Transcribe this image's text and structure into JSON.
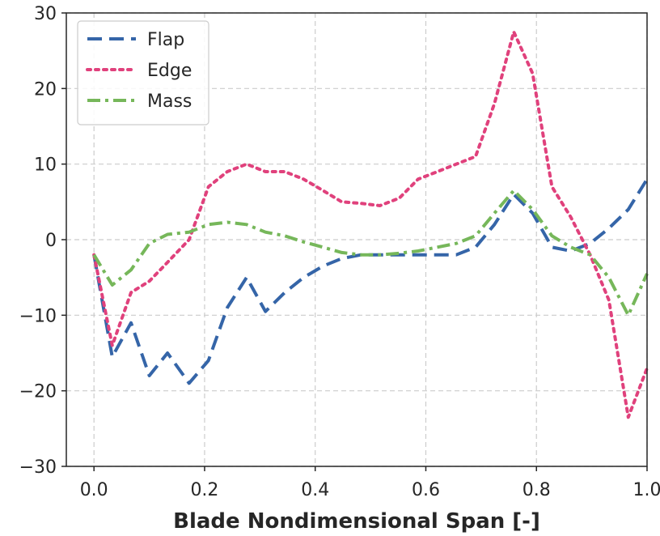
{
  "chart_data": {
    "type": "line",
    "xlabel": "Blade Nondimensional Span [-]",
    "ylabel": "",
    "xlim": [
      -0.05,
      1.0
    ],
    "ylim": [
      -30,
      30
    ],
    "xticks": [
      0.0,
      0.2,
      0.4,
      0.6,
      0.8,
      1.0
    ],
    "xtick_labels": [
      "0.0",
      "0.2",
      "0.4",
      "0.6",
      "0.8",
      "1.0"
    ],
    "yticks": [
      -30,
      -20,
      -10,
      0,
      10,
      20,
      30
    ],
    "ytick_labels": [
      "−30",
      "−20",
      "−10",
      "0",
      "10",
      "20",
      "30"
    ],
    "grid": true,
    "legend_position": "top-left",
    "series": [
      {
        "name": "Flap",
        "color": "#3565a8",
        "style": "dashed",
        "x": [
          0.0,
          0.033,
          0.067,
          0.1,
          0.133,
          0.172,
          0.207,
          0.241,
          0.276,
          0.31,
          0.345,
          0.379,
          0.414,
          0.448,
          0.483,
          0.517,
          0.552,
          0.586,
          0.621,
          0.655,
          0.69,
          0.724,
          0.759,
          0.793,
          0.828,
          0.862,
          0.897,
          0.931,
          0.966,
          1.0
        ],
        "y": [
          -2,
          -15.5,
          -11,
          -18,
          -15,
          -19,
          -16,
          -9,
          -5,
          -9.5,
          -7,
          -5,
          -3.5,
          -2.5,
          -2,
          -2,
          -2,
          -2,
          -2,
          -2,
          -1,
          2,
          6,
          3.5,
          -1,
          -1.5,
          -0.5,
          1.5,
          4,
          8
        ]
      },
      {
        "name": "Edge",
        "color": "#e0417c",
        "style": "dotted",
        "x": [
          0.0,
          0.033,
          0.067,
          0.1,
          0.133,
          0.172,
          0.207,
          0.241,
          0.276,
          0.31,
          0.345,
          0.379,
          0.414,
          0.448,
          0.483,
          0.517,
          0.552,
          0.586,
          0.621,
          0.655,
          0.69,
          0.724,
          0.759,
          0.793,
          0.828,
          0.862,
          0.897,
          0.931,
          0.966,
          1.0
        ],
        "y": [
          -2,
          -14,
          -7,
          -5.5,
          -3,
          0,
          7,
          9,
          10,
          9,
          9,
          8,
          6.5,
          5,
          4.8,
          4.5,
          5.5,
          8,
          9,
          10,
          11,
          18,
          27.5,
          22,
          7,
          3,
          -2,
          -8,
          -23.5,
          -17
        ]
      },
      {
        "name": "Mass",
        "color": "#76b75a",
        "style": "dashdot",
        "x": [
          0.0,
          0.033,
          0.067,
          0.1,
          0.133,
          0.172,
          0.207,
          0.241,
          0.276,
          0.31,
          0.345,
          0.379,
          0.414,
          0.448,
          0.483,
          0.517,
          0.552,
          0.586,
          0.621,
          0.655,
          0.69,
          0.724,
          0.759,
          0.793,
          0.828,
          0.862,
          0.897,
          0.931,
          0.966,
          1.0
        ],
        "y": [
          -2,
          -6,
          -4,
          -0.5,
          0.7,
          1,
          2,
          2.3,
          2,
          1,
          0.5,
          -0.3,
          -1,
          -1.7,
          -2,
          -2,
          -1.8,
          -1.5,
          -1,
          -0.5,
          0.5,
          3.5,
          6.5,
          4,
          0.5,
          -1,
          -2,
          -5,
          -10,
          -4.5
        ]
      }
    ]
  }
}
